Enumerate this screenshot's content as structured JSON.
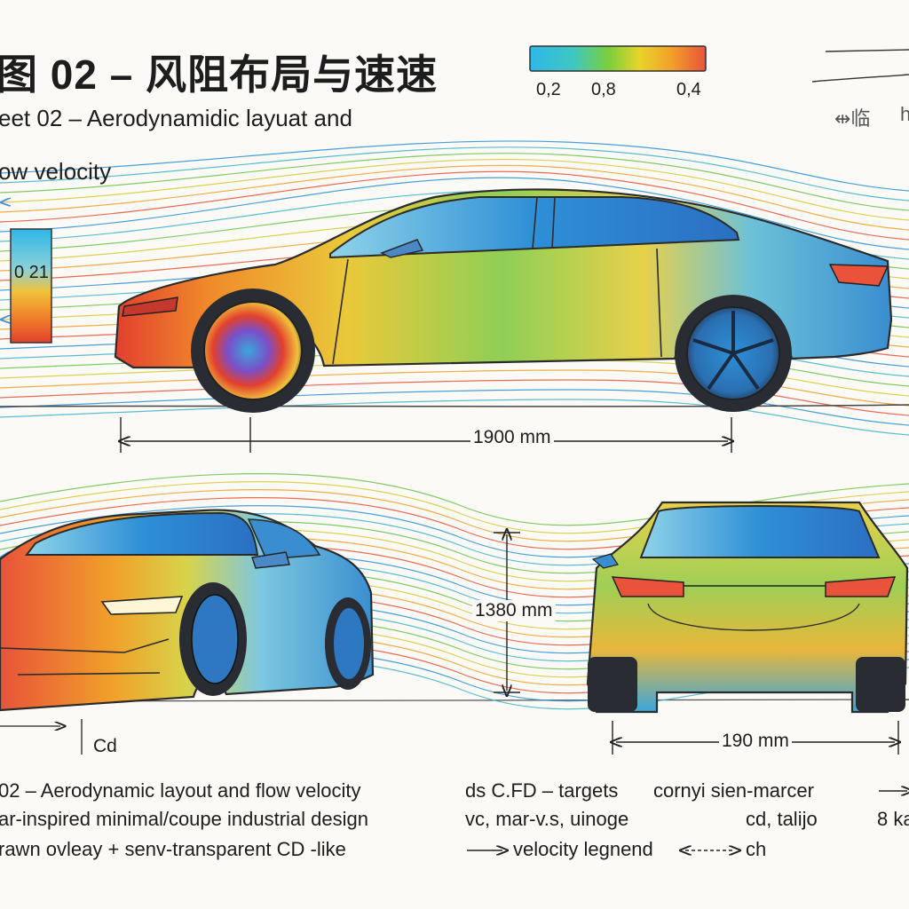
{
  "header": {
    "title_zh": "图 02 – 风阻布局与速速",
    "title_en": "eet 02 – Aerodynamidic layuat and",
    "subtitle_line2": "ow velocity",
    "corner_marks": [
      "⇹临",
      "h"
    ]
  },
  "scale_bar": {
    "labels": [
      "0,2",
      "0,8",
      "0,4"
    ],
    "colors": [
      "#2fb7e8",
      "#3fc8c0",
      "#7ccf3a",
      "#e6d52a",
      "#f2a22a",
      "#e8533a"
    ]
  },
  "side_legend": {
    "label": "0 21"
  },
  "dimensions": {
    "length": "1900 mm",
    "height": "1380 mm",
    "width": "190 mm",
    "cd_label": "Cd"
  },
  "notes": {
    "left": [
      "02 – Aerodynamic layout and flow velocity",
      "ar-inspired minimal/coupe industrial design",
      "rawn ovleay + senv-transparent CD -like"
    ],
    "mid": [
      "ds C.FD – targets",
      "vc, mar-v.s, uinoge",
      "velocity legnend"
    ],
    "right": [
      "cornyi sien-marcer",
      "cd, talijo",
      "ch"
    ],
    "far_right": [
      "⇒",
      "8 ka"
    ]
  },
  "views": [
    "side-view",
    "front-three-quarter-view",
    "rear-view"
  ],
  "colors": {
    "body_blue": "#3aa6dc",
    "warm_red": "#e5532f",
    "yellow": "#e9cf3a",
    "green": "#78c84a",
    "tire": "#2a2c33"
  }
}
